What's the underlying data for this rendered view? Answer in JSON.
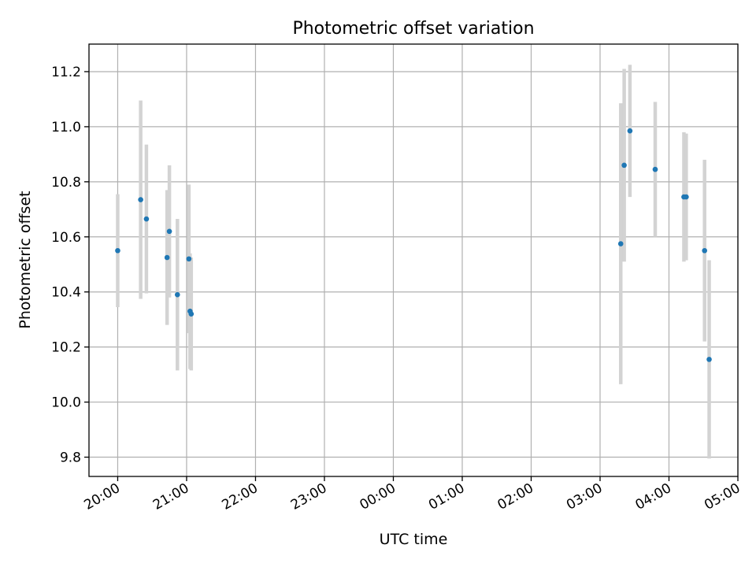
{
  "chart_data": {
    "type": "scatter",
    "title": "Photometric offset variation",
    "xlabel": "UTC time",
    "ylabel": "Photometric offset",
    "grid": true,
    "x_axis": {
      "kind": "time",
      "range": [
        "19:35",
        "05:00"
      ],
      "ticks": [
        "20:00",
        "21:00",
        "22:00",
        "23:00",
        "00:00",
        "01:00",
        "02:00",
        "03:00",
        "04:00",
        "05:00"
      ]
    },
    "ylim": [
      9.73,
      11.3
    ],
    "yticks": [
      9.8,
      10.0,
      10.2,
      10.4,
      10.6,
      10.8,
      11.0,
      11.2
    ],
    "colors": {
      "points": "#1f77b4",
      "errorbars": "#d3d3d3"
    },
    "series": [
      {
        "points": [
          {
            "time": "20:00",
            "y": 10.55,
            "err": 0.205
          },
          {
            "time": "20:20",
            "y": 10.735,
            "err": 0.36
          },
          {
            "time": "20:25",
            "y": 10.665,
            "err": 0.27
          },
          {
            "time": "20:43",
            "y": 10.525,
            "err": 0.245
          },
          {
            "time": "20:45",
            "y": 10.62,
            "err": 0.24
          },
          {
            "time": "20:52",
            "y": 10.39,
            "err": 0.275
          },
          {
            "time": "21:02",
            "y": 10.52,
            "err": 0.27
          },
          {
            "time": "21:03",
            "y": 10.33,
            "err": 0.21
          },
          {
            "time": "21:04",
            "y": 10.32,
            "err": 0.205
          },
          {
            "time": "03:18",
            "y": 10.575,
            "err": 0.51
          },
          {
            "time": "03:21",
            "y": 10.86,
            "err": 0.35
          },
          {
            "time": "03:26",
            "y": 10.985,
            "err": 0.24
          },
          {
            "time": "03:48",
            "y": 10.845,
            "err": 0.245
          },
          {
            "time": "04:13",
            "y": 10.745,
            "err": 0.235
          },
          {
            "time": "04:15",
            "y": 10.745,
            "err": 0.23
          },
          {
            "time": "04:31",
            "y": 10.55,
            "err": 0.33
          },
          {
            "time": "04:35",
            "y": 10.155,
            "err": 0.36
          }
        ]
      }
    ]
  }
}
